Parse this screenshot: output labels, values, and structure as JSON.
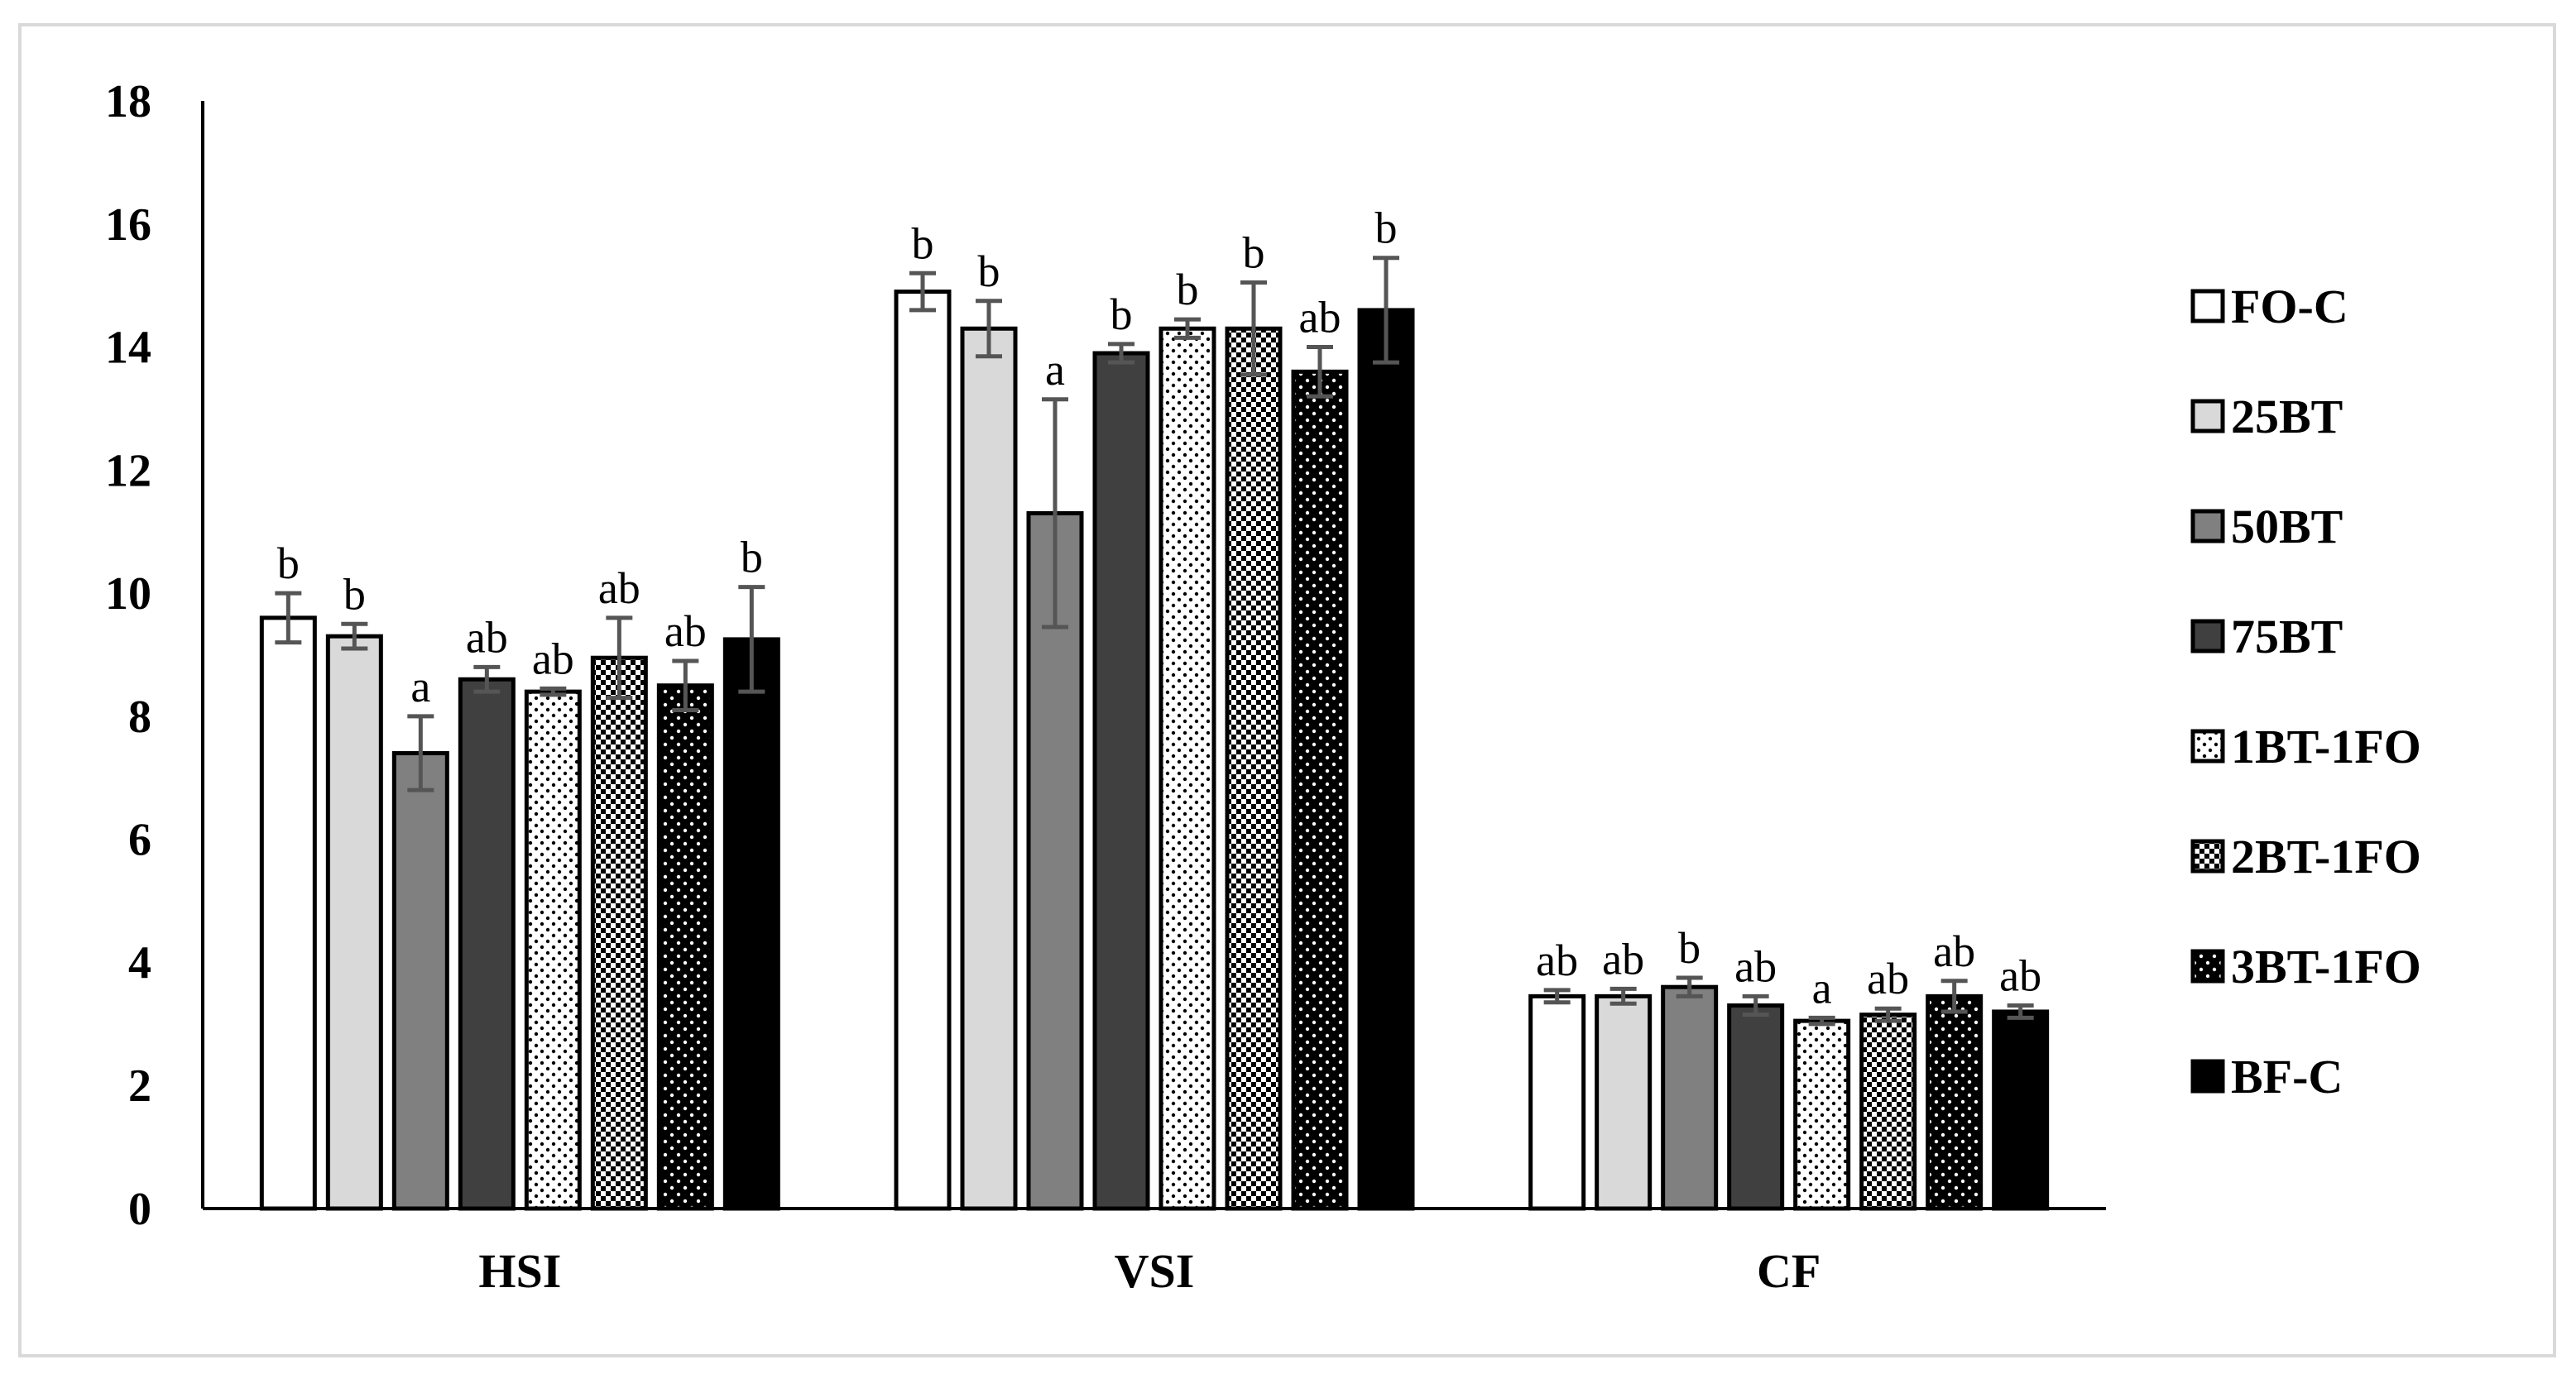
{
  "chart_data": {
    "type": "bar",
    "title": "",
    "xlabel": "",
    "ylabel": "",
    "ylim": [
      0,
      18
    ],
    "yticks": [
      0,
      2,
      4,
      6,
      8,
      10,
      12,
      14,
      16,
      18
    ],
    "categories": [
      "HSI",
      "VSI",
      "CF"
    ],
    "legend_position": "right",
    "series": [
      {
        "name": "FO-C",
        "pattern": "white",
        "values": [
          9.6,
          14.9,
          3.45
        ],
        "errors": [
          0.4,
          0.3,
          0.1
        ],
        "labels": [
          "b",
          "b",
          "ab"
        ]
      },
      {
        "name": "25BT",
        "pattern": "light-gray",
        "values": [
          9.3,
          14.3,
          3.45
        ],
        "errors": [
          0.2,
          0.45,
          0.12
        ],
        "labels": [
          "b",
          "b",
          "ab"
        ]
      },
      {
        "name": "50BT",
        "pattern": "mid-gray",
        "values": [
          7.4,
          11.3,
          3.6
        ],
        "errors": [
          0.6,
          1.85,
          0.15
        ],
        "labels": [
          "a",
          "a",
          "b"
        ]
      },
      {
        "name": "75BT",
        "pattern": "dark-gray",
        "values": [
          8.6,
          13.9,
          3.3
        ],
        "errors": [
          0.2,
          0.15,
          0.15
        ],
        "labels": [
          "ab",
          "b",
          "ab"
        ]
      },
      {
        "name": "1BT-1FO",
        "pattern": "dots-white",
        "values": [
          8.4,
          14.3,
          3.05
        ],
        "errors": [
          0.05,
          0.15,
          0.05
        ],
        "labels": [
          "ab",
          "b",
          "a"
        ]
      },
      {
        "name": "2BT-1FO",
        "pattern": "checker",
        "values": [
          8.95,
          14.3,
          3.15
        ],
        "errors": [
          0.65,
          0.75,
          0.1
        ],
        "labels": [
          "ab",
          "b",
          "ab"
        ]
      },
      {
        "name": "3BT-1FO",
        "pattern": "dots-black",
        "values": [
          8.5,
          13.6,
          3.45
        ],
        "errors": [
          0.4,
          0.4,
          0.25
        ],
        "labels": [
          "ab",
          "ab",
          "ab"
        ]
      },
      {
        "name": "BF-C",
        "pattern": "black",
        "values": [
          9.25,
          14.6,
          3.2
        ],
        "errors": [
          0.85,
          0.85,
          0.1
        ],
        "labels": [
          "b",
          "b",
          "ab"
        ]
      }
    ]
  }
}
